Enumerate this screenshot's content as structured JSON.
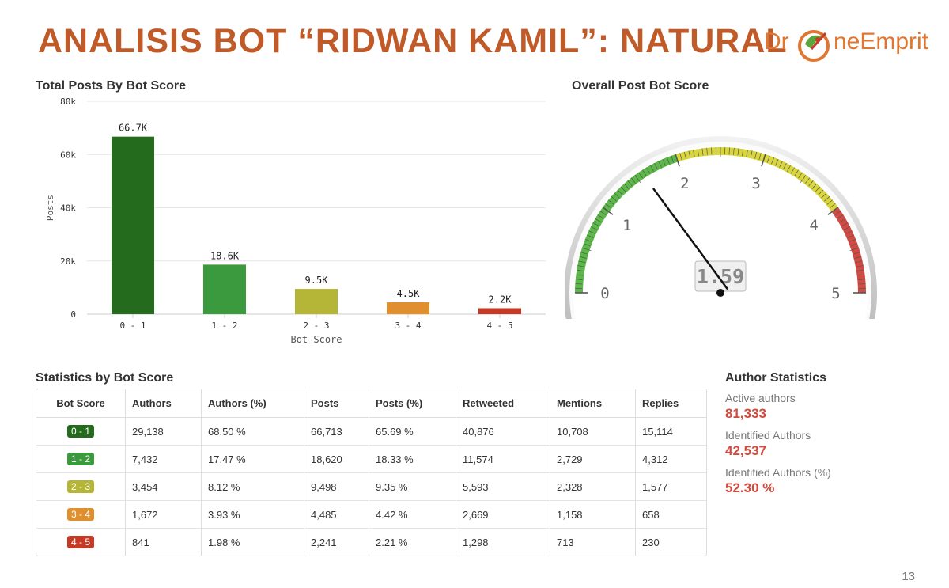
{
  "title": "ANALISIS BOT “RIDWAN KAMIL”: NATURAL",
  "logo": {
    "prefix": "Dr",
    "suffix": "neEmprit"
  },
  "bar_title": "Total Posts By Bot Score",
  "gauge_title": "Overall Post Bot Score",
  "table_title": "Statistics by Bot Score",
  "author_title": "Author Statistics",
  "chart_data": [
    {
      "type": "bar",
      "title": "Total Posts By Bot Score",
      "categories": [
        "0 - 1",
        "1 - 2",
        "2 - 3",
        "3 - 4",
        "4 - 5"
      ],
      "values": [
        66713,
        18620,
        9498,
        4485,
        2241
      ],
      "data_labels": [
        "66.7K",
        "18.6K",
        "9.5K",
        "4.5K",
        "2.2K"
      ],
      "colors": [
        "#256b1e",
        "#3b9a3e",
        "#b5b637",
        "#e08f2e",
        "#c43a25"
      ],
      "xlabel": "Bot Score",
      "ylabel": "Posts",
      "ylim": [
        0,
        80000
      ],
      "yticks": [
        0,
        20000,
        40000,
        60000,
        80000
      ],
      "ytick_labels": [
        "0",
        "20k",
        "40k",
        "60k",
        "80k"
      ],
      "grid": true
    },
    {
      "type": "gauge",
      "title": "Overall Post Bot Score",
      "value": 1.59,
      "value_label": "1.59",
      "range": [
        0,
        5
      ],
      "tick_labels": [
        "0",
        "1",
        "2",
        "3",
        "4",
        "5"
      ],
      "bands": [
        {
          "from": 0,
          "to": 2,
          "color": "#5cb848"
        },
        {
          "from": 2,
          "to": 4,
          "color": "#d8d63c"
        },
        {
          "from": 4,
          "to": 5,
          "color": "#d34a43"
        }
      ]
    }
  ],
  "stats_table": {
    "headers": [
      "Bot Score",
      "Authors",
      "Authors (%)",
      "Posts",
      "Posts (%)",
      "Retweeted",
      "Mentions",
      "Replies"
    ],
    "rows": [
      {
        "score": "0 - 1",
        "color": "#256b1e",
        "cells": [
          "29,138",
          "68.50 %",
          "66,713",
          "65.69 %",
          "40,876",
          "10,708",
          "15,114"
        ]
      },
      {
        "score": "1 - 2",
        "color": "#3b9a3e",
        "cells": [
          "7,432",
          "17.47 %",
          "18,620",
          "18.33 %",
          "11,574",
          "2,729",
          "4,312"
        ]
      },
      {
        "score": "2 - 3",
        "color": "#b5b637",
        "cells": [
          "3,454",
          "8.12 %",
          "9,498",
          "9.35 %",
          "5,593",
          "2,328",
          "1,577"
        ]
      },
      {
        "score": "3 - 4",
        "color": "#e08f2e",
        "cells": [
          "1,672",
          "3.93 %",
          "4,485",
          "4.42 %",
          "2,669",
          "1,158",
          "658"
        ]
      },
      {
        "score": "4 - 5",
        "color": "#c43a25",
        "cells": [
          "841",
          "1.98 %",
          "2,241",
          "2.21 %",
          "1,298",
          "713",
          "230"
        ]
      }
    ]
  },
  "author_stats": [
    {
      "label": "Active authors",
      "value": "81,333"
    },
    {
      "label": "Identified Authors",
      "value": "42,537"
    },
    {
      "label": "Identified Authors (%)",
      "value": "52.30 %"
    }
  ],
  "page_number": "13"
}
